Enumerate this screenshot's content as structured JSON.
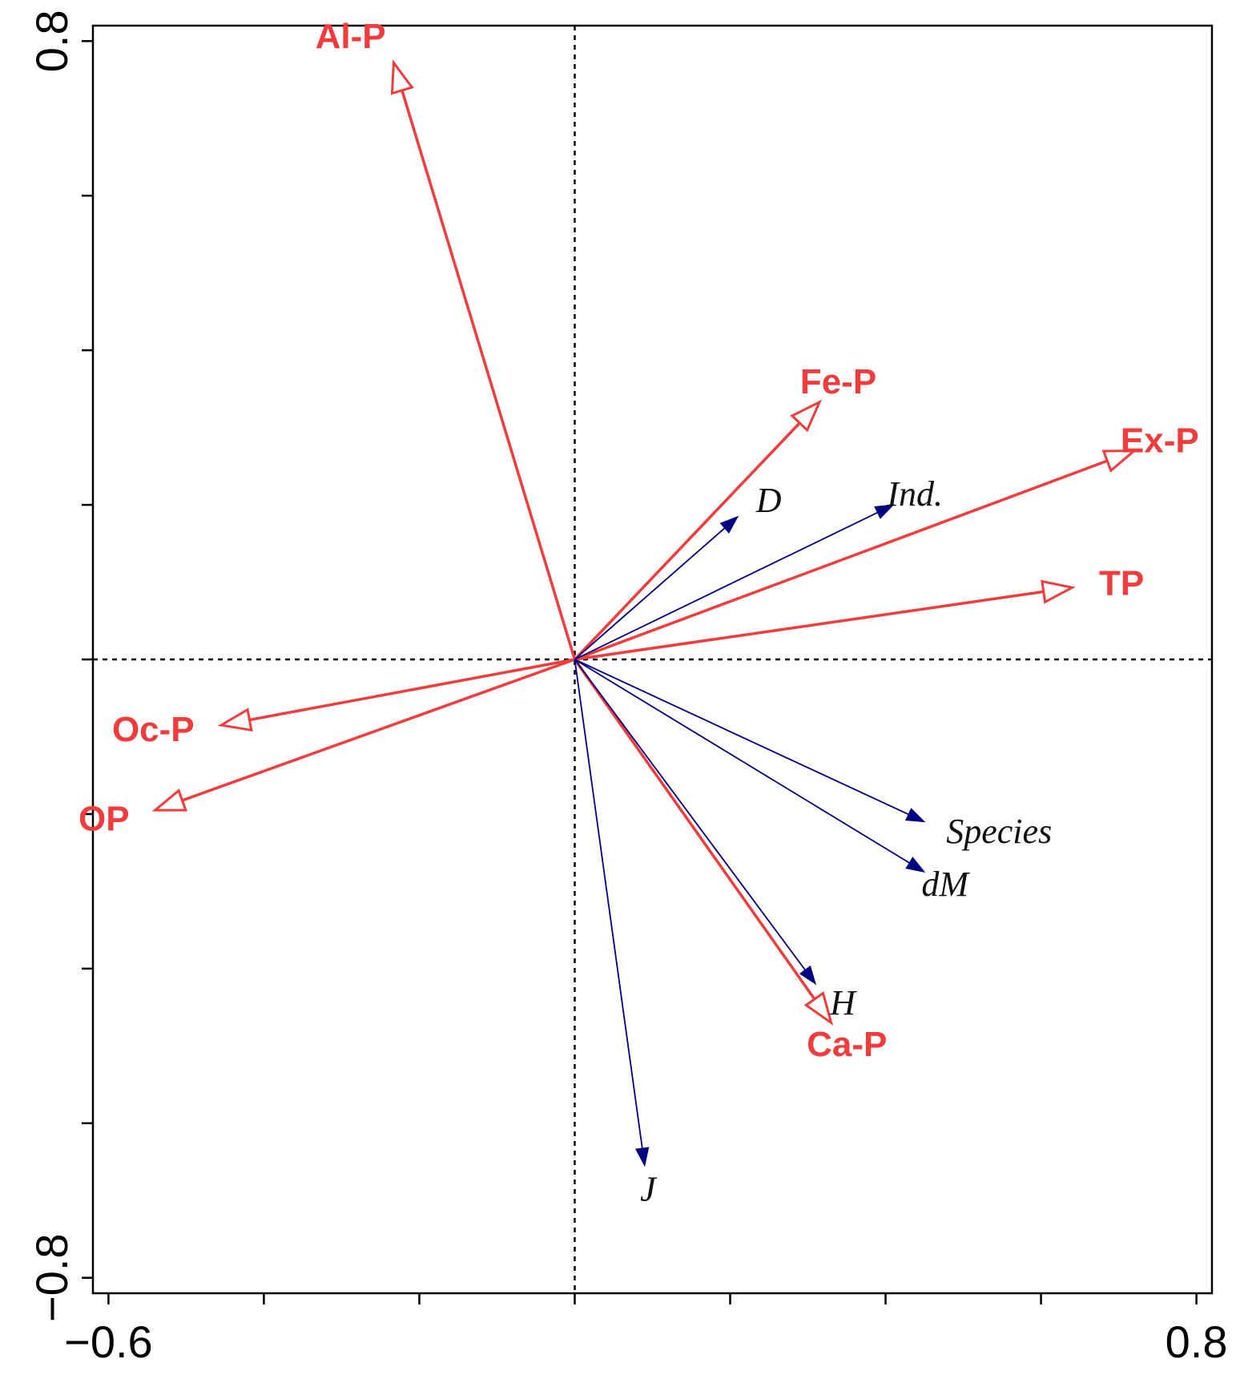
{
  "chart_data": {
    "type": "biplot",
    "xlim": [
      -0.62,
      0.82
    ],
    "ylim": [
      -0.82,
      0.82
    ],
    "x_tick_values": [
      -0.6,
      -0.4,
      -0.2,
      0,
      0.2,
      0.4,
      0.6,
      0.8
    ],
    "y_tick_values": [
      -0.8,
      -0.6,
      -0.4,
      -0.2,
      0,
      0.2,
      0.4,
      0.6,
      0.8
    ],
    "x_tick_labels": [
      {
        "value": -0.6,
        "text": "−0.6"
      },
      {
        "value": 0.8,
        "text": "0.8"
      }
    ],
    "y_tick_labels": [
      {
        "value": 0.8,
        "text": "0.8"
      },
      {
        "value": -0.8,
        "text": "−0.8"
      }
    ],
    "reference_lines": {
      "x": 0,
      "y": 0,
      "style": "dashed"
    },
    "colors": {
      "environment": "#f03c3c",
      "diversity": "#000080",
      "label_dark": "#111111"
    },
    "environment_arrows": [
      {
        "name": "Al-P",
        "x": -0.233,
        "y": 0.772,
        "label_anchor": "end"
      },
      {
        "name": "Fe-P",
        "x": 0.315,
        "y": 0.333,
        "label_anchor": "middle"
      },
      {
        "name": "Ex-P",
        "x": 0.72,
        "y": 0.27,
        "label_anchor": "middle"
      },
      {
        "name": "TP",
        "x": 0.64,
        "y": 0.093,
        "label_anchor": "start"
      },
      {
        "name": "Oc-P",
        "x": -0.455,
        "y": -0.085,
        "label_anchor": "end"
      },
      {
        "name": "OP",
        "x": -0.54,
        "y": -0.195,
        "label_anchor": "end"
      },
      {
        "name": "Ca-P",
        "x": 0.33,
        "y": -0.47,
        "label_anchor": "middle"
      }
    ],
    "diversity_arrows": [
      {
        "name": "D",
        "x": 0.21,
        "y": 0.185,
        "label_anchor": "start"
      },
      {
        "name": "Ind.",
        "x": 0.41,
        "y": 0.2,
        "label_anchor": "middle"
      },
      {
        "name": "Species",
        "x": 0.45,
        "y": -0.21,
        "label_anchor": "start"
      },
      {
        "name": "dM",
        "x": 0.45,
        "y": -0.275,
        "label_anchor": "middle"
      },
      {
        "name": "H",
        "x": 0.31,
        "y": -0.42,
        "label_anchor": "start"
      },
      {
        "name": "J",
        "x": 0.09,
        "y": -0.655,
        "label_anchor": "middle"
      }
    ]
  }
}
